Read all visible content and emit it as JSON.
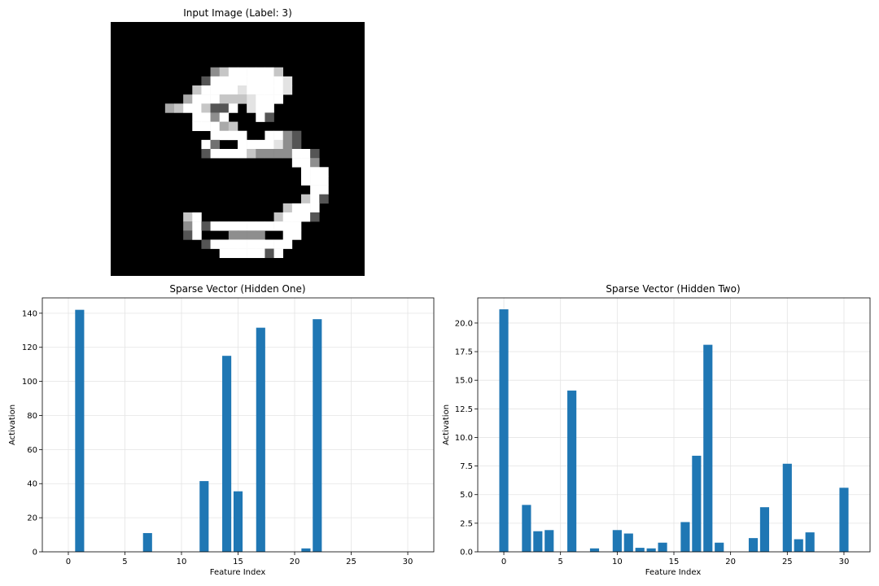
{
  "image_panel": {
    "title": "Input Image (Label: 3)",
    "grid_size": 28,
    "rows": [
      "0000000000000000000000000000",
      "0000000000000000000000000000",
      "0000000000000000000000000000",
      "0000000000000000000000000000",
      "0000000000000000000000000000",
      "00000000000579999970000000000",
      "0000000000399999999800000000",
      "0000000007999989999800000000",
      "0000000069997778999000000000",
      "0000006799733908990000000000",
      "0000000009959000930000000000",
      "0000000009996700000000000000",
      "0000000000099990099530000000",
      "0000000000940099998530000000",
      "0000000000399997555599300000",
      "0000000000000000000099500000",
      "0000000000000000000009990000",
      "0000000000000000000009990000",
      "0000000000000000000000990000",
      "0000000000000000000007930000",
      "0000000000000000000799900000",
      "0000000079000000007999300000",
      "0000000059399999999990000000",
      "0000000039000555500990000000",
      "0000000000399999999900000000",
      "0000000000009999939000000000",
      "0000000000000000000000000000",
      "0000000000000000000000000000"
    ]
  },
  "chart_data": [
    {
      "type": "bar",
      "title": "Sparse Vector (Hidden One)",
      "xlabel": "Feature Index",
      "ylabel": "Activation",
      "xlim": [
        -2.3,
        32.3
      ],
      "ylim": [
        0,
        149
      ],
      "xticks": [
        0,
        5,
        10,
        15,
        20,
        25,
        30
      ],
      "yticks": [
        0,
        20,
        40,
        60,
        80,
        100,
        120,
        140
      ],
      "grid": true,
      "color": "#1f77b4",
      "x": [
        1,
        7,
        12,
        14,
        15,
        17,
        21,
        22
      ],
      "values": [
        142,
        11,
        41.5,
        115,
        35.5,
        131.5,
        2,
        136.5
      ]
    },
    {
      "type": "bar",
      "title": "Sparse Vector (Hidden Two)",
      "xlabel": "Feature Index",
      "ylabel": "Activation",
      "xlim": [
        -2.3,
        32.3
      ],
      "ylim": [
        0,
        22.2
      ],
      "xticks": [
        0,
        5,
        10,
        15,
        20,
        25,
        30
      ],
      "yticks": [
        0.0,
        2.5,
        5.0,
        7.5,
        10.0,
        12.5,
        15.0,
        17.5,
        20.0
      ],
      "ytick_labels": [
        "0.0",
        "2.5",
        "5.0",
        "7.5",
        "10.0",
        "12.5",
        "15.0",
        "17.5",
        "20.0"
      ],
      "grid": true,
      "color": "#1f77b4",
      "x": [
        0,
        2,
        3,
        4,
        6,
        8,
        10,
        11,
        12,
        13,
        14,
        16,
        17,
        18,
        19,
        22,
        23,
        25,
        26,
        27,
        30
      ],
      "values": [
        21.2,
        4.1,
        1.8,
        1.9,
        14.1,
        0.3,
        1.9,
        1.6,
        0.35,
        0.3,
        0.8,
        2.6,
        8.4,
        18.1,
        0.8,
        1.2,
        3.9,
        7.7,
        1.1,
        1.7,
        5.6
      ]
    }
  ]
}
